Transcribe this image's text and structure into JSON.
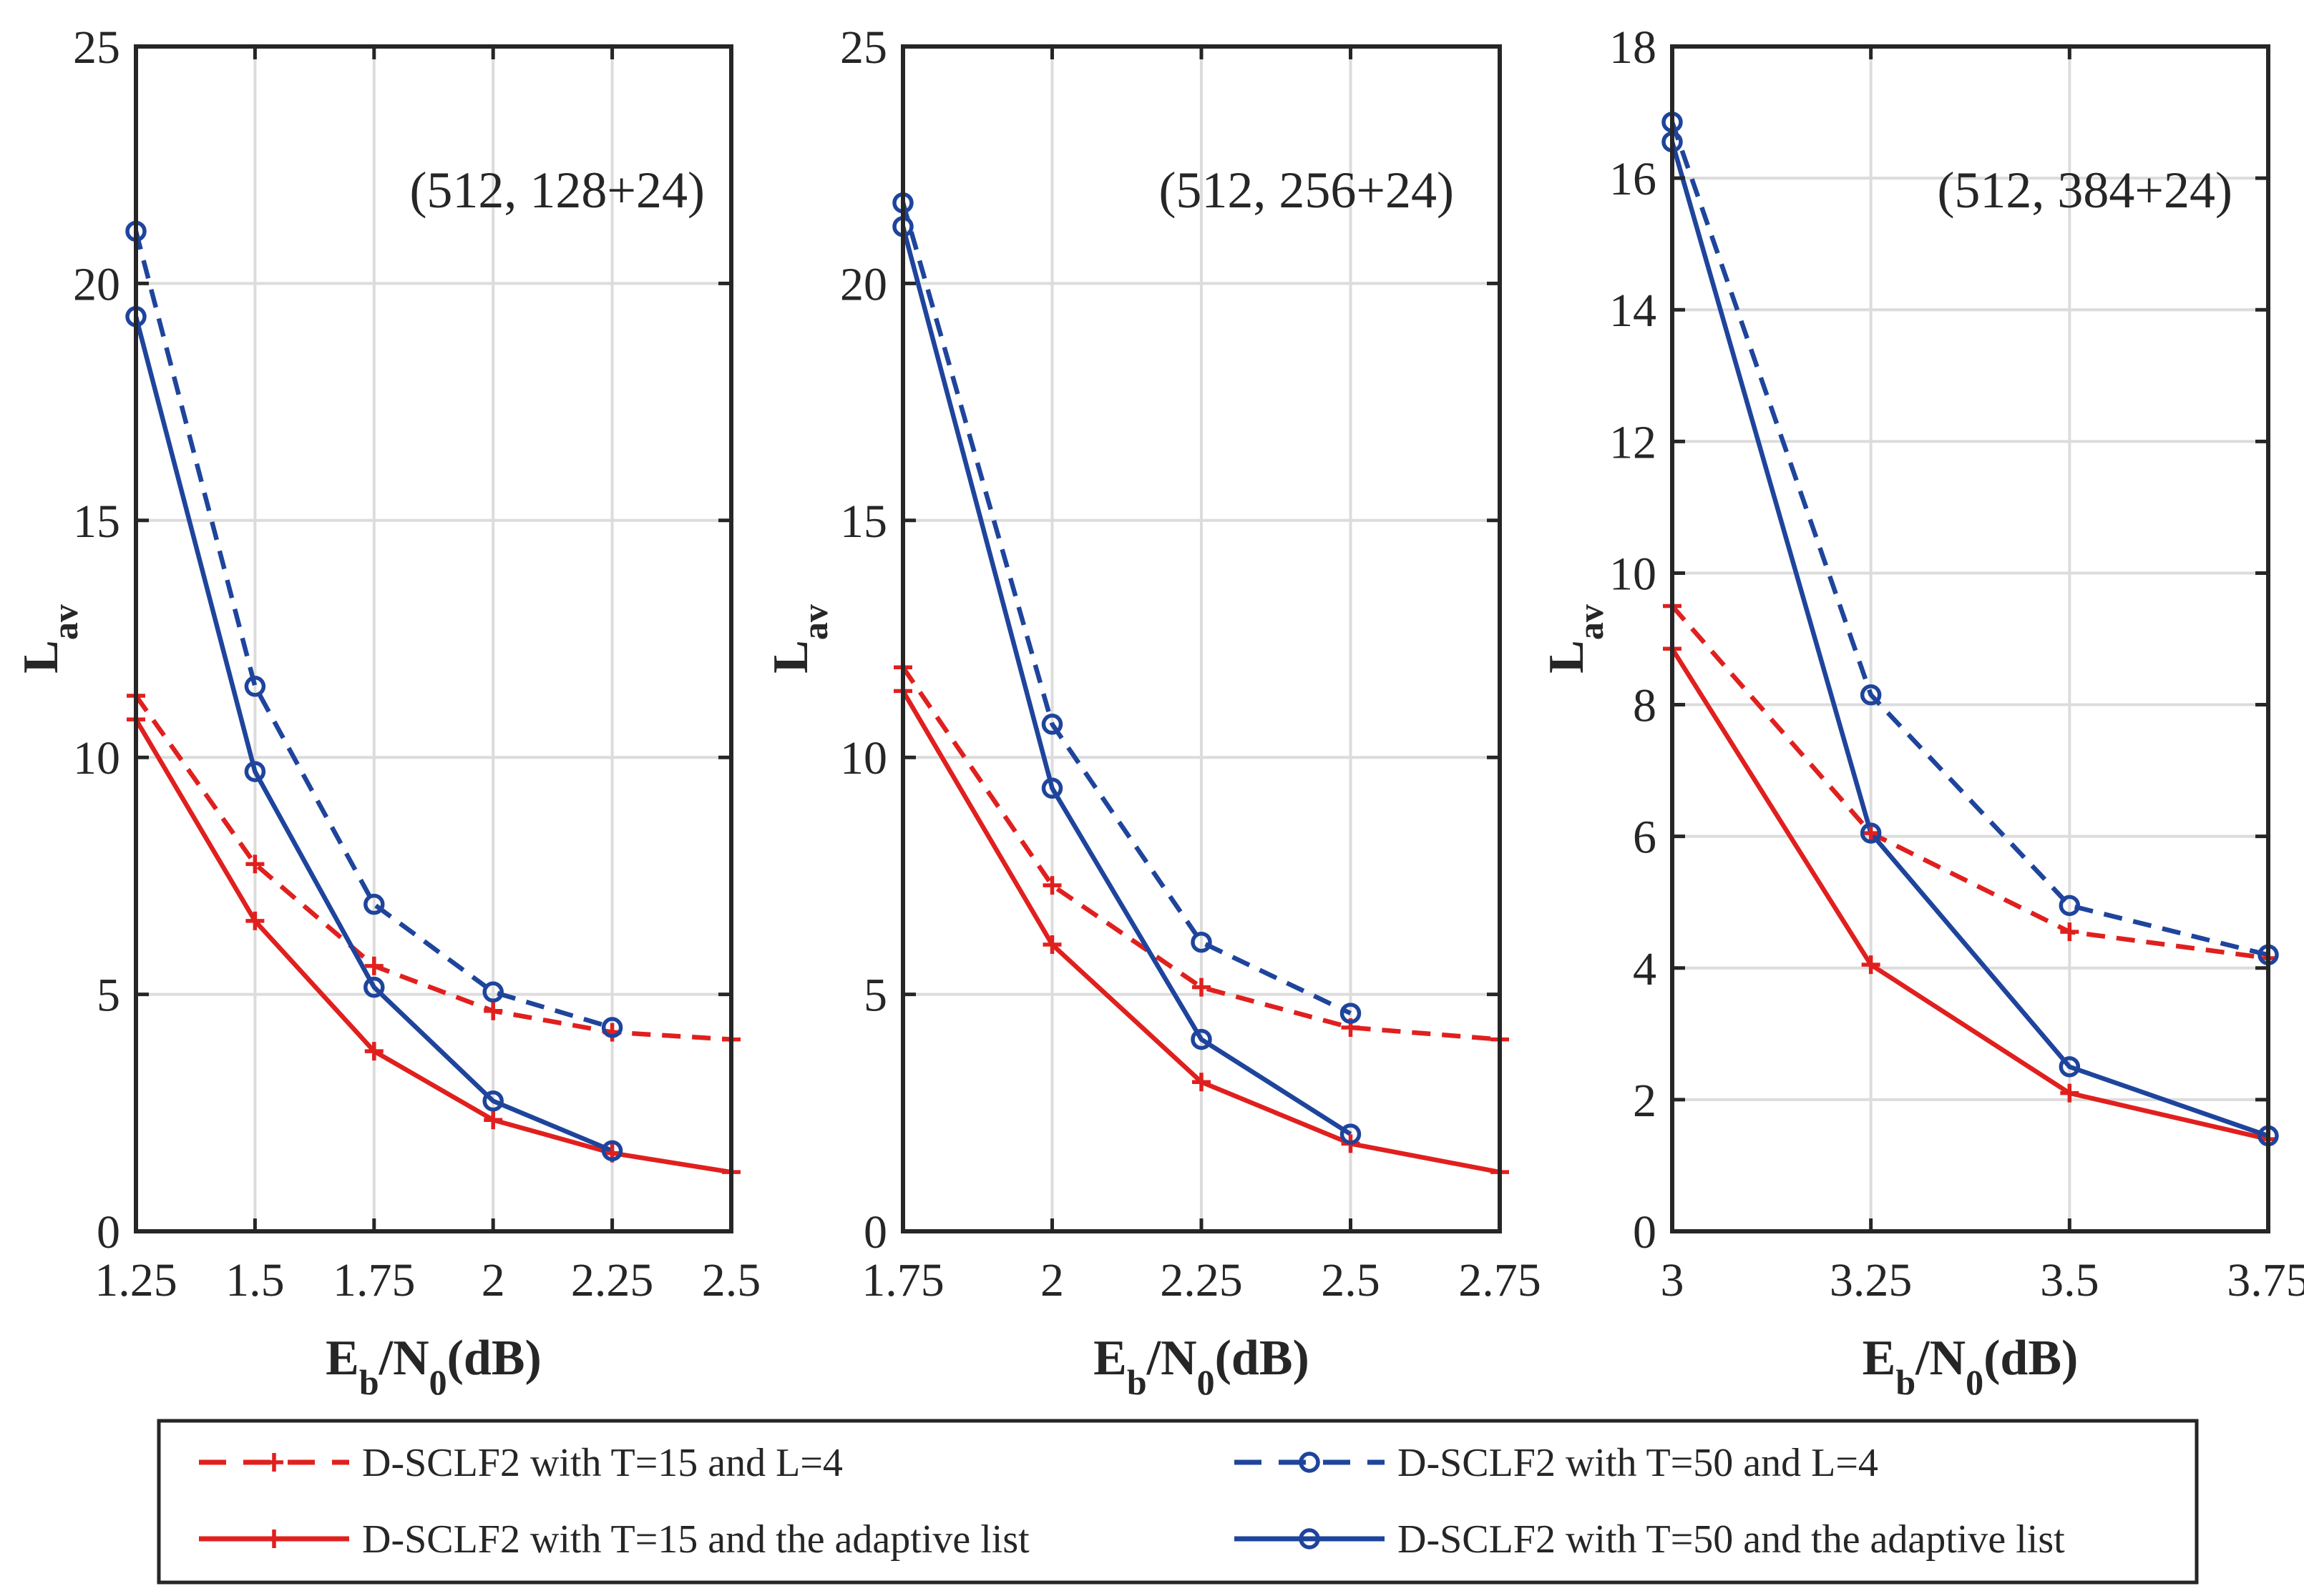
{
  "colors": {
    "red": "#e0201e",
    "blue": "#1e449c",
    "axis": "#262626",
    "grid": "#dcdcdc"
  },
  "chart_data": [
    {
      "type": "line",
      "annotation": "(512, 128+24)",
      "xlabel": {
        "main": "E",
        "sub1": "b",
        "mid": "/N",
        "sub2": "0",
        "tail": "(dB)"
      },
      "ylabel": {
        "main": "L",
        "sub": "av"
      },
      "xlim": [
        1.25,
        2.5
      ],
      "ylim": [
        0,
        25
      ],
      "xticks": [
        1.25,
        1.5,
        1.75,
        2,
        2.25,
        2.5
      ],
      "xtick_labels": [
        "1.25",
        "1.5",
        "1.75",
        "2",
        "2.25",
        "2.5"
      ],
      "yticks": [
        0,
        5,
        10,
        15,
        20,
        25
      ],
      "ytick_labels": [
        "0",
        "5",
        "10",
        "15",
        "20",
        "25"
      ],
      "grid": true,
      "series": [
        {
          "name": "D-SCLF2 with T=15 and L=4",
          "color": "red",
          "dash": true,
          "marker": "plus",
          "x": [
            1.25,
            1.5,
            1.75,
            2,
            2.25,
            2.5
          ],
          "values": [
            11.3,
            7.75,
            5.6,
            4.65,
            4.2,
            4.05
          ]
        },
        {
          "name": "D-SCLF2 with T=15 and the adaptive list",
          "color": "red",
          "dash": false,
          "marker": "plus",
          "x": [
            1.25,
            1.5,
            1.75,
            2,
            2.25,
            2.5
          ],
          "values": [
            10.8,
            6.55,
            3.8,
            2.35,
            1.65,
            1.25
          ]
        },
        {
          "name": "D-SCLF2 with T=50 and L=4",
          "color": "blue",
          "dash": true,
          "marker": "circle",
          "x": [
            1.25,
            1.5,
            1.75,
            2,
            2.25
          ],
          "values": [
            21.1,
            11.5,
            6.9,
            5.05,
            4.3
          ]
        },
        {
          "name": "D-SCLF2 with T=50 and the adaptive list",
          "color": "blue",
          "dash": false,
          "marker": "circle",
          "x": [
            1.25,
            1.5,
            1.75,
            2,
            2.25
          ],
          "values": [
            19.3,
            9.7,
            5.15,
            2.75,
            1.7
          ]
        }
      ]
    },
    {
      "type": "line",
      "annotation": "(512, 256+24)",
      "xlabel": {
        "main": "E",
        "sub1": "b",
        "mid": "/N",
        "sub2": "0",
        "tail": "(dB)"
      },
      "ylabel": {
        "main": "L",
        "sub": "av"
      },
      "xlim": [
        1.75,
        2.75
      ],
      "ylim": [
        0,
        25
      ],
      "xticks": [
        1.75,
        2,
        2.25,
        2.5,
        2.75
      ],
      "xtick_labels": [
        "1.75",
        "2",
        "2.25",
        "2.5",
        "2.75"
      ],
      "yticks": [
        0,
        5,
        10,
        15,
        20,
        25
      ],
      "ytick_labels": [
        "0",
        "5",
        "10",
        "15",
        "20",
        "25"
      ],
      "grid": true,
      "series": [
        {
          "name": "D-SCLF2 with T=15 and L=4",
          "color": "red",
          "dash": true,
          "marker": "plus",
          "x": [
            1.75,
            2,
            2.25,
            2.5,
            2.75
          ],
          "values": [
            11.9,
            7.3,
            5.15,
            4.3,
            4.05
          ]
        },
        {
          "name": "D-SCLF2 with T=15 and the adaptive list",
          "color": "red",
          "dash": false,
          "marker": "plus",
          "x": [
            1.75,
            2,
            2.25,
            2.5,
            2.75
          ],
          "values": [
            11.4,
            6.05,
            3.15,
            1.85,
            1.25
          ]
        },
        {
          "name": "D-SCLF2 with T=50 and L=4",
          "color": "blue",
          "dash": true,
          "marker": "circle",
          "x": [
            1.75,
            2,
            2.25,
            2.5
          ],
          "values": [
            21.7,
            10.7,
            6.1,
            4.6
          ]
        },
        {
          "name": "D-SCLF2 with T=50 and the adaptive list",
          "color": "blue",
          "dash": false,
          "marker": "circle",
          "x": [
            1.75,
            2,
            2.25,
            2.5
          ],
          "values": [
            21.2,
            9.35,
            4.05,
            2.05
          ]
        }
      ]
    },
    {
      "type": "line",
      "annotation": "(512, 384+24)",
      "xlabel": {
        "main": "E",
        "sub1": "b",
        "mid": "/N",
        "sub2": "0",
        "tail": "(dB)"
      },
      "ylabel": {
        "main": "L",
        "sub": "av"
      },
      "xlim": [
        3,
        3.75
      ],
      "ylim": [
        0,
        18
      ],
      "xticks": [
        3,
        3.25,
        3.5,
        3.75
      ],
      "xtick_labels": [
        "3",
        "3.25",
        "3.5",
        "3.75"
      ],
      "yticks": [
        0,
        2,
        4,
        6,
        8,
        10,
        12,
        14,
        16,
        18
      ],
      "ytick_labels": [
        "0",
        "2",
        "4",
        "6",
        "8",
        "10",
        "12",
        "14",
        "16",
        "18"
      ],
      "grid": true,
      "series": [
        {
          "name": "D-SCLF2 with T=15 and L=4",
          "color": "red",
          "dash": true,
          "marker": "plus",
          "x": [
            3,
            3.25,
            3.5,
            3.75
          ],
          "values": [
            9.5,
            6.05,
            4.55,
            4.15
          ]
        },
        {
          "name": "D-SCLF2 with T=15 and the adaptive list",
          "color": "red",
          "dash": false,
          "marker": "plus",
          "x": [
            3,
            3.25,
            3.5,
            3.75
          ],
          "values": [
            8.85,
            4.05,
            2.1,
            1.4
          ]
        },
        {
          "name": "D-SCLF2 with T=50 and L=4",
          "color": "blue",
          "dash": true,
          "marker": "circle",
          "x": [
            3,
            3.25,
            3.5,
            3.75
          ],
          "values": [
            16.85,
            8.15,
            4.95,
            4.2
          ]
        },
        {
          "name": "D-SCLF2 with T=50 and the adaptive list",
          "color": "blue",
          "dash": false,
          "marker": "circle",
          "x": [
            3,
            3.25,
            3.5,
            3.75
          ],
          "values": [
            16.55,
            6.05,
            2.5,
            1.45
          ]
        }
      ]
    }
  ],
  "legend": {
    "placement": "bottom",
    "items": [
      {
        "label": "D-SCLF2 with T=15 and L=4",
        "color": "red",
        "dash": true,
        "marker": "plus"
      },
      {
        "label": "D-SCLF2 with T=50 and L=4",
        "color": "blue",
        "dash": true,
        "marker": "circle"
      },
      {
        "label": "D-SCLF2 with T=15 and the adaptive list",
        "color": "red",
        "dash": false,
        "marker": "plus"
      },
      {
        "label": "D-SCLF2 with T=50 and the adaptive list",
        "color": "blue",
        "dash": false,
        "marker": "circle"
      }
    ]
  }
}
